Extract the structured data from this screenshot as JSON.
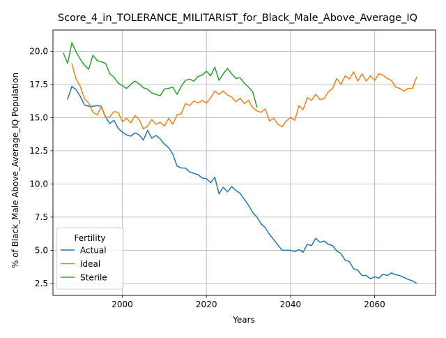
{
  "chart_data": {
    "type": "line",
    "title": "Score_4_in_TOLERANCE_MILITARIST_for_Black_Male_Above_Average_IQ",
    "xlabel": "Years",
    "ylabel": "% of Black_Male Above_Average_IQ Population",
    "xlim": [
      1983.5,
      2074.5
    ],
    "ylim": [
      1.6,
      21.6
    ],
    "xticks": [
      2000,
      2020,
      2040,
      2060
    ],
    "yticks": [
      2.5,
      5.0,
      7.5,
      10.0,
      12.5,
      15.0,
      17.5,
      20.0
    ],
    "ytick_labels": [
      "2.5",
      "5.0",
      "7.5",
      "10.0",
      "12.5",
      "15.0",
      "17.5",
      "20.0"
    ],
    "grid": true,
    "legend": {
      "title": "Fertility",
      "position": "lower-left"
    },
    "series": [
      {
        "name": "Actual",
        "color": "#1f77b4",
        "x": [
          1987,
          1988,
          1989,
          1990,
          1991,
          1992,
          1993,
          1994,
          1995,
          1996,
          1997,
          1998,
          1999,
          2000,
          2001,
          2002,
          2003,
          2004,
          2005,
          2006,
          2007,
          2008,
          2009,
          2010,
          2011,
          2012,
          2013,
          2014,
          2015,
          2016,
          2017,
          2018,
          2019,
          2020,
          2021,
          2022,
          2023,
          2024,
          2025,
          2026,
          2027,
          2028,
          2029,
          2030,
          2031,
          2032,
          2033,
          2034,
          2035,
          2036,
          2037,
          2038,
          2039,
          2040,
          2041,
          2042,
          2043,
          2044,
          2045,
          2046,
          2047,
          2048,
          2049,
          2050,
          2051,
          2052,
          2053,
          2054,
          2055,
          2056,
          2057,
          2058,
          2059,
          2060,
          2061,
          2062,
          2063,
          2064,
          2065,
          2066,
          2067,
          2068,
          2069,
          2070
        ],
        "values": [
          16.4,
          17.35,
          17.1,
          16.6,
          15.95,
          15.85,
          15.85,
          15.9,
          15.85,
          15.05,
          14.55,
          14.8,
          14.2,
          13.9,
          13.7,
          13.6,
          13.85,
          13.7,
          13.3,
          14.05,
          13.45,
          13.65,
          13.4,
          13.0,
          12.75,
          12.25,
          11.35,
          11.2,
          11.2,
          10.9,
          10.8,
          10.7,
          10.45,
          10.4,
          10.1,
          10.5,
          9.25,
          9.75,
          9.4,
          9.8,
          9.5,
          9.3,
          8.85,
          8.4,
          7.85,
          7.5,
          7.0,
          6.7,
          6.2,
          5.8,
          5.4,
          5.0,
          5.0,
          5.0,
          4.9,
          5.05,
          4.85,
          5.45,
          5.35,
          5.9,
          5.6,
          5.7,
          5.45,
          5.35,
          4.95,
          4.75,
          4.25,
          4.15,
          3.6,
          3.5,
          3.1,
          3.1,
          2.85,
          3.0,
          2.9,
          3.2,
          3.1,
          3.3,
          3.15,
          3.1,
          2.95,
          2.8,
          2.7,
          2.5
        ]
      },
      {
        "name": "Ideal",
        "color": "#ff7f0e",
        "x": [
          1988,
          1989,
          1990,
          1991,
          1992,
          1993,
          1994,
          1995,
          1996,
          1997,
          1998,
          1999,
          2000,
          2001,
          2002,
          2003,
          2004,
          2005,
          2006,
          2007,
          2008,
          2009,
          2010,
          2011,
          2012,
          2013,
          2014,
          2015,
          2016,
          2017,
          2018,
          2019,
          2020,
          2021,
          2022,
          2023,
          2024,
          2025,
          2026,
          2027,
          2028,
          2029,
          2030,
          2031,
          2032,
          2033,
          2034,
          2035,
          2036,
          2037,
          2038,
          2039,
          2040,
          2041,
          2042,
          2043,
          2044,
          2045,
          2046,
          2047,
          2048,
          2049,
          2050,
          2051,
          2052,
          2053,
          2054,
          2055,
          2056,
          2057,
          2058,
          2059,
          2060,
          2061,
          2062,
          2063,
          2064,
          2065,
          2066,
          2067,
          2068,
          2069,
          2070
        ],
        "values": [
          19.05,
          17.9,
          17.35,
          16.4,
          16.1,
          15.4,
          15.2,
          15.8,
          15.0,
          15.05,
          15.45,
          15.4,
          14.7,
          14.95,
          14.6,
          15.15,
          14.85,
          14.15,
          14.35,
          14.85,
          14.5,
          14.65,
          14.35,
          14.95,
          14.5,
          15.2,
          15.3,
          16.05,
          15.9,
          16.25,
          16.1,
          16.3,
          16.1,
          16.5,
          17.0,
          16.75,
          17.0,
          16.7,
          16.55,
          16.2,
          16.45,
          16.05,
          16.3,
          15.75,
          15.5,
          15.4,
          15.65,
          14.75,
          14.95,
          14.5,
          14.3,
          14.75,
          15.0,
          14.8,
          15.9,
          15.6,
          16.5,
          16.3,
          16.75,
          16.35,
          16.45,
          16.95,
          17.2,
          17.95,
          17.5,
          18.15,
          17.9,
          18.45,
          17.75,
          18.3,
          17.75,
          18.15,
          17.8,
          18.3,
          18.2,
          17.95,
          17.8,
          17.3,
          17.2,
          17.0,
          17.2,
          17.2,
          18.05
        ]
      },
      {
        "name": "Sterile",
        "color": "#2ca02c",
        "x": [
          1986,
          1987,
          1988,
          1989,
          1990,
          1991,
          1992,
          1993,
          1994,
          1995,
          1996,
          1997,
          1998,
          1999,
          2000,
          2001,
          2002,
          2003,
          2004,
          2005,
          2006,
          2007,
          2008,
          2009,
          2010,
          2011,
          2012,
          2013,
          2014,
          2015,
          2016,
          2017,
          2018,
          2019,
          2020,
          2021,
          2022,
          2023,
          2024,
          2025,
          2026,
          2027,
          2028,
          2029,
          2030,
          2031,
          2032
        ],
        "values": [
          19.85,
          19.1,
          20.65,
          19.95,
          19.4,
          18.95,
          18.65,
          19.7,
          19.3,
          19.2,
          19.1,
          18.3,
          18.05,
          17.6,
          17.4,
          17.2,
          17.5,
          17.75,
          17.55,
          17.25,
          17.15,
          16.85,
          16.75,
          16.65,
          17.15,
          17.2,
          17.3,
          16.75,
          17.35,
          17.8,
          17.9,
          17.75,
          18.1,
          18.2,
          18.5,
          18.15,
          18.8,
          17.8,
          18.3,
          18.7,
          18.3,
          17.95,
          18.0,
          17.6,
          17.3,
          16.95,
          15.8
        ]
      }
    ]
  }
}
